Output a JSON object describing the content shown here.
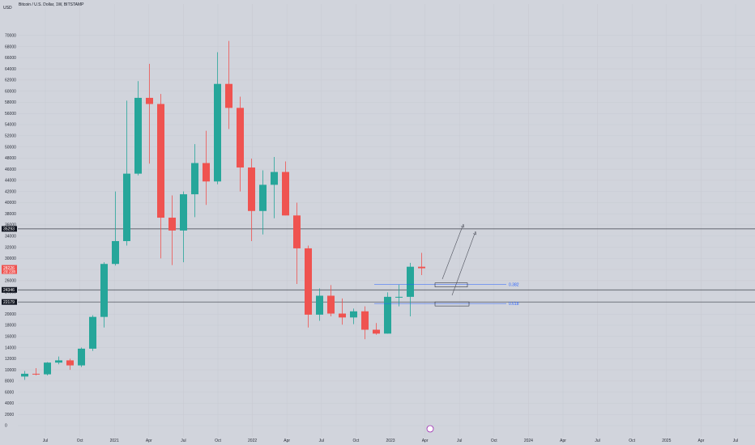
{
  "header": {
    "symbol_title": "Bitcoin / U.S. Dollar, 1W, BITSTAMP",
    "unit": "USD"
  },
  "colors": {
    "background": "#d1d4dc",
    "up": "#26a69a",
    "down": "#ef5350",
    "grid": "#c5c8d0",
    "fib": "#2962ff",
    "line": "#3d404a"
  },
  "chart_data": {
    "type": "candlestick",
    "title": "Bitcoin / U.S. Dollar, 1W, BITSTAMP",
    "ylabel": "USD",
    "ylim": [
      0,
      72000
    ],
    "y_ticks": [
      0,
      2000,
      4000,
      6000,
      8000,
      10000,
      12000,
      14000,
      16000,
      18000,
      20000,
      22000,
      24000,
      26000,
      28000,
      30000,
      32000,
      34000,
      36000,
      38000,
      40000,
      42000,
      44000,
      46000,
      48000,
      50000,
      52000,
      54000,
      56000,
      58000,
      60000,
      62000,
      64000,
      66000,
      68000,
      70000
    ],
    "x_ticks": [
      "Jul",
      "Oct",
      "2021",
      "Apr",
      "Jul",
      "Oct",
      "2022",
      "Apr",
      "Jul",
      "Oct",
      "2023",
      "Apr",
      "Jul",
      "Oct",
      "2024",
      "Apr",
      "Jul",
      "Oct",
      "2025",
      "Apr",
      "Jul"
    ],
    "series": [
      {
        "period": "2020-05",
        "open": 8800,
        "high": 9800,
        "low": 8200,
        "close": 9300
      },
      {
        "period": "2020-06",
        "open": 9300,
        "high": 10300,
        "low": 9000,
        "close": 9200
      },
      {
        "period": "2020-07",
        "open": 9200,
        "high": 11400,
        "low": 9000,
        "close": 11300
      },
      {
        "period": "2020-08",
        "open": 11300,
        "high": 12400,
        "low": 11000,
        "close": 11700
      },
      {
        "period": "2020-09",
        "open": 11700,
        "high": 12000,
        "low": 10000,
        "close": 10800
      },
      {
        "period": "2020-10",
        "open": 10800,
        "high": 14000,
        "low": 10500,
        "close": 13800
      },
      {
        "period": "2020-11",
        "open": 13800,
        "high": 19800,
        "low": 13400,
        "close": 19500
      },
      {
        "period": "2020-12",
        "open": 19500,
        "high": 29300,
        "low": 17600,
        "close": 29000
      },
      {
        "period": "2021-01",
        "open": 29000,
        "high": 42000,
        "low": 28700,
        "close": 33100
      },
      {
        "period": "2021-02",
        "open": 33100,
        "high": 58300,
        "low": 32300,
        "close": 45200
      },
      {
        "period": "2021-03",
        "open": 45200,
        "high": 61800,
        "low": 44900,
        "close": 58800
      },
      {
        "period": "2021-04",
        "open": 58800,
        "high": 64900,
        "low": 47000,
        "close": 57700
      },
      {
        "period": "2021-05",
        "open": 57700,
        "high": 59500,
        "low": 30000,
        "close": 37300
      },
      {
        "period": "2021-06",
        "open": 37300,
        "high": 41300,
        "low": 28800,
        "close": 35000
      },
      {
        "period": "2021-07",
        "open": 35000,
        "high": 42000,
        "low": 29300,
        "close": 41500
      },
      {
        "period": "2021-08",
        "open": 41500,
        "high": 50500,
        "low": 37400,
        "close": 47100
      },
      {
        "period": "2021-09",
        "open": 47100,
        "high": 52900,
        "low": 39600,
        "close": 43800
      },
      {
        "period": "2021-10",
        "open": 43800,
        "high": 67000,
        "low": 43300,
        "close": 61300
      },
      {
        "period": "2021-11",
        "open": 61300,
        "high": 69000,
        "low": 53200,
        "close": 57000
      },
      {
        "period": "2021-12",
        "open": 57000,
        "high": 59000,
        "low": 42000,
        "close": 46300
      },
      {
        "period": "2022-01",
        "open": 46300,
        "high": 47900,
        "low": 33100,
        "close": 38500
      },
      {
        "period": "2022-02",
        "open": 38500,
        "high": 45800,
        "low": 34300,
        "close": 43200
      },
      {
        "period": "2022-03",
        "open": 43200,
        "high": 48200,
        "low": 37200,
        "close": 45500
      },
      {
        "period": "2022-04",
        "open": 45500,
        "high": 47400,
        "low": 37700,
        "close": 37700
      },
      {
        "period": "2022-05",
        "open": 37700,
        "high": 40000,
        "low": 25400,
        "close": 31800
      },
      {
        "period": "2022-06",
        "open": 31800,
        "high": 32300,
        "low": 17600,
        "close": 19900
      },
      {
        "period": "2022-07",
        "open": 19900,
        "high": 24600,
        "low": 18800,
        "close": 23300
      },
      {
        "period": "2022-08",
        "open": 23300,
        "high": 25200,
        "low": 19600,
        "close": 20100
      },
      {
        "period": "2022-09",
        "open": 20100,
        "high": 22800,
        "low": 18100,
        "close": 19400
      },
      {
        "period": "2022-10",
        "open": 19400,
        "high": 21000,
        "low": 18200,
        "close": 20500
      },
      {
        "period": "2022-11",
        "open": 20500,
        "high": 21400,
        "low": 15500,
        "close": 17200
      },
      {
        "period": "2022-12",
        "open": 17200,
        "high": 18400,
        "low": 16300,
        "close": 16500
      },
      {
        "period": "2023-01",
        "open": 16500,
        "high": 23900,
        "low": 16500,
        "close": 23100
      },
      {
        "period": "2023-02",
        "open": 23100,
        "high": 25300,
        "low": 21400,
        "close": 23100
      },
      {
        "period": "2023-03",
        "open": 23100,
        "high": 29200,
        "low": 19600,
        "close": 28500
      },
      {
        "period": "2023-04",
        "open": 28500,
        "high": 31000,
        "low": 27000,
        "close": 28226
      }
    ],
    "horizontal_levels": [
      {
        "value": 35293,
        "label": "35293"
      },
      {
        "value": 24346,
        "label": "24346"
      },
      {
        "value": 22179,
        "label": "22179"
      }
    ],
    "current_price": {
      "value": 28226,
      "label": "28226",
      "countdown": "2d 23h"
    },
    "fib_levels": [
      {
        "ratio_label": "0.382",
        "value": 25300
      },
      {
        "ratio_label": "0.618",
        "value": 21900
      }
    ]
  }
}
